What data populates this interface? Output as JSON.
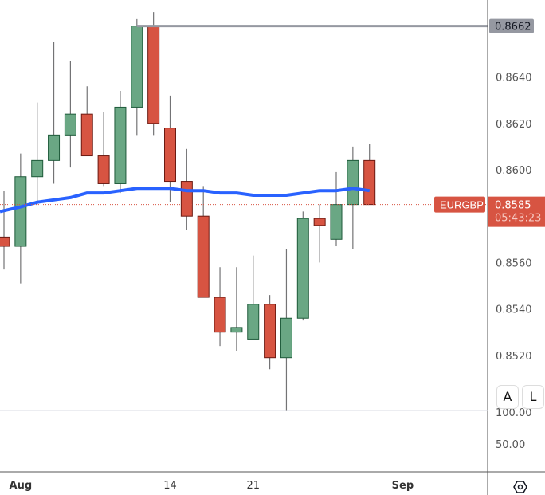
{
  "chart_data": {
    "type": "candlestick",
    "symbol": "EURGBP",
    "candles": [
      {
        "date": "Jul 31",
        "open": 0.8571,
        "high": 0.8591,
        "low": 0.8557,
        "close": 0.8567
      },
      {
        "date": "Aug 1",
        "open": 0.8567,
        "high": 0.8607,
        "low": 0.8551,
        "close": 0.8597
      },
      {
        "date": "Aug 2",
        "open": 0.8597,
        "high": 0.8629,
        "low": 0.8585,
        "close": 0.8604
      },
      {
        "date": "Aug 3",
        "open": 0.8604,
        "high": 0.8655,
        "low": 0.8594,
        "close": 0.8615
      },
      {
        "date": "Aug 4",
        "open": 0.8615,
        "high": 0.8647,
        "low": 0.8601,
        "close": 0.8624
      },
      {
        "date": "Aug 7",
        "open": 0.8624,
        "high": 0.8636,
        "low": 0.8606,
        "close": 0.8606
      },
      {
        "date": "Aug 8",
        "open": 0.8606,
        "high": 0.8625,
        "low": 0.8593,
        "close": 0.8594
      },
      {
        "date": "Aug 9",
        "open": 0.8594,
        "high": 0.8634,
        "low": 0.859,
        "close": 0.8627
      },
      {
        "date": "Aug 10",
        "open": 0.8627,
        "high": 0.8665,
        "low": 0.8615,
        "close": 0.8662
      },
      {
        "date": "Aug 11",
        "open": 0.8662,
        "high": 0.8668,
        "low": 0.8615,
        "close": 0.862
      },
      {
        "date": "Aug 14",
        "open": 0.8618,
        "high": 0.8632,
        "low": 0.8586,
        "close": 0.8595
      },
      {
        "date": "Aug 15",
        "open": 0.8595,
        "high": 0.8609,
        "low": 0.8574,
        "close": 0.858
      },
      {
        "date": "Aug 16",
        "open": 0.858,
        "high": 0.8593,
        "low": 0.8545,
        "close": 0.8545
      },
      {
        "date": "Aug 17",
        "open": 0.8545,
        "high": 0.8558,
        "low": 0.8524,
        "close": 0.853
      },
      {
        "date": "Aug 18",
        "open": 0.853,
        "high": 0.8558,
        "low": 0.8522,
        "close": 0.8532
      },
      {
        "date": "Aug 21",
        "open": 0.8527,
        "high": 0.8563,
        "low": 0.8527,
        "close": 0.8542
      },
      {
        "date": "Aug 22",
        "open": 0.8542,
        "high": 0.8546,
        "low": 0.8514,
        "close": 0.8519
      },
      {
        "date": "Aug 23",
        "open": 0.8519,
        "high": 0.8566,
        "low": 0.8496,
        "close": 0.8536
      },
      {
        "date": "Aug 24",
        "open": 0.8536,
        "high": 0.8582,
        "low": 0.8535,
        "close": 0.8579
      },
      {
        "date": "Aug 25",
        "open": 0.8579,
        "high": 0.8585,
        "low": 0.856,
        "close": 0.8576
      },
      {
        "date": "Aug 28",
        "open": 0.857,
        "high": 0.8599,
        "low": 0.8567,
        "close": 0.8585
      },
      {
        "date": "Aug 29",
        "open": 0.8585,
        "high": 0.861,
        "low": 0.8566,
        "close": 0.8604
      },
      {
        "date": "Aug 30",
        "open": 0.8604,
        "high": 0.8611,
        "low": 0.8585,
        "close": 0.8585
      }
    ],
    "moving_average": [
      0.8582,
      0.8584,
      0.8586,
      0.8587,
      0.8588,
      0.859,
      0.859,
      0.8591,
      0.8592,
      0.8592,
      0.8592,
      0.8591,
      0.8591,
      0.859,
      0.859,
      0.8589,
      0.8589,
      0.8589,
      0.859,
      0.8591,
      0.8591,
      0.8592,
      0.8591
    ],
    "horizontal_line": {
      "value": 0.8662,
      "label": "0.8662"
    },
    "last_price": {
      "symbol": "EURGBP",
      "value": "0.8585",
      "countdown": "05:43:23",
      "price": 0.8585
    },
    "y_ticks": [
      "0.8640",
      "0.8620",
      "0.8600",
      "0.8560",
      "0.8540",
      "0.8520"
    ],
    "y_tick_values": [
      0.864,
      0.862,
      0.86,
      0.856,
      0.854,
      0.852
    ],
    "ylim": [
      0.849,
      0.8672
    ],
    "lower_pane_ticks": [
      "100.00",
      "50.00"
    ],
    "x_ticks": [
      {
        "label": "Aug",
        "index": 1,
        "bold": true
      },
      {
        "label": "14",
        "index": 10,
        "bold": false
      },
      {
        "label": "21",
        "index": 15,
        "bold": false
      },
      {
        "label": "Sep",
        "index": 24,
        "bold": true
      }
    ],
    "colors": {
      "up": "#6aa784",
      "up_border": "#1e5a3a",
      "down": "#d75442",
      "down_border": "#6b1a12",
      "ma": "#2962ff",
      "hline": "#9598a1",
      "label_red": "#d75442"
    },
    "grid": false
  },
  "controls": {
    "auto_scale": "A",
    "log_scale": "L",
    "settings_icon": "settings-hexagon-icon"
  }
}
